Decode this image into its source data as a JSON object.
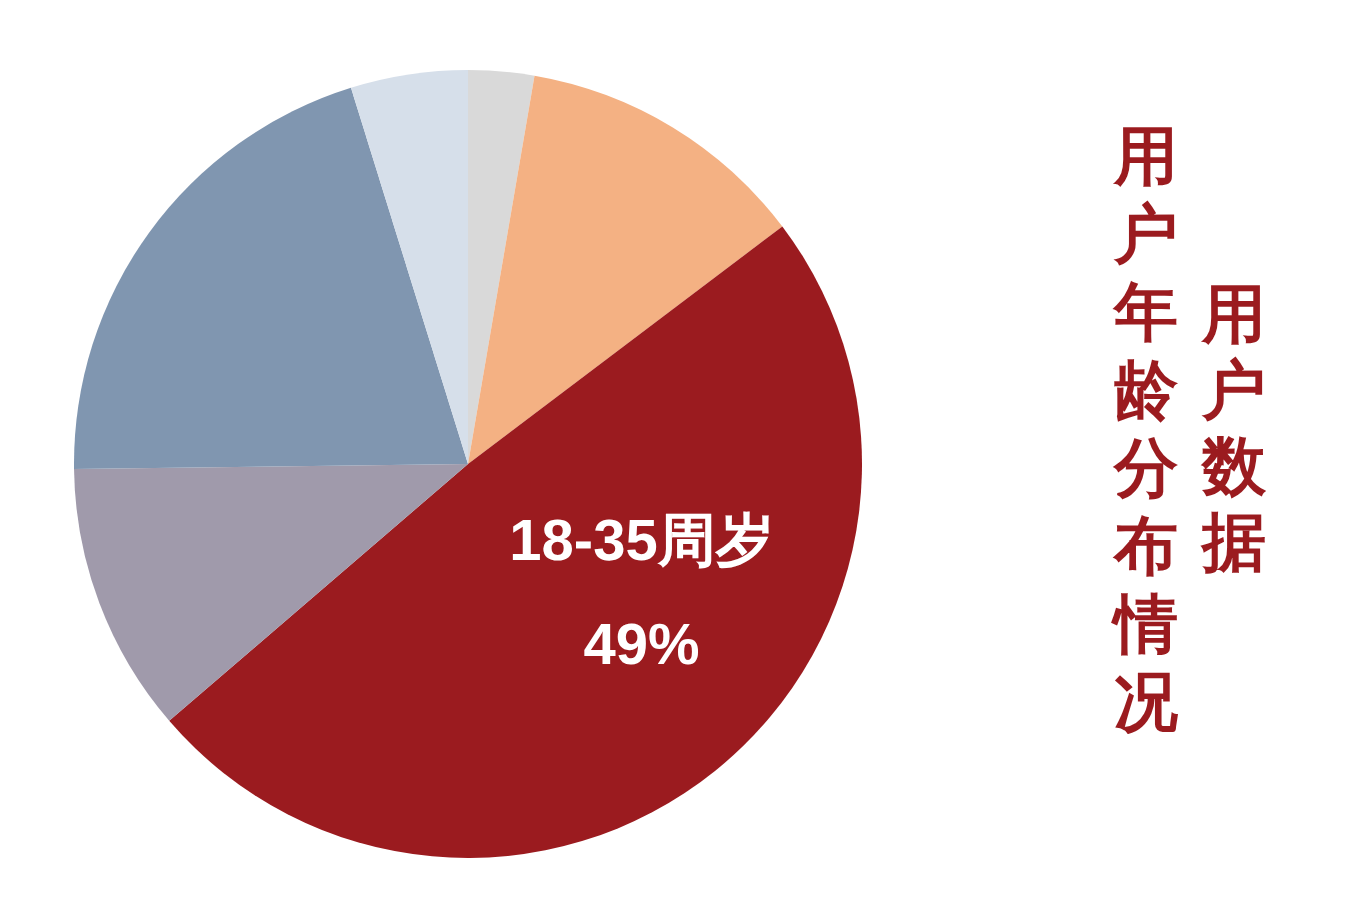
{
  "chart_data": {
    "type": "pie",
    "title": "用户数据",
    "subtitle": "用户年龄分布情况",
    "categories": [
      null,
      null,
      "18-35周岁",
      null,
      null,
      null
    ],
    "values": [
      2.7,
      12,
      49,
      11.1,
      20.4,
      4.8
    ],
    "value_labels": [
      null,
      null,
      "49%",
      null,
      null,
      null
    ],
    "colors": [
      "#d9d9d9",
      "#f4b183",
      "#9b1b1f",
      "#a09aab",
      "#8096b0",
      "#d6dfea"
    ]
  }
}
